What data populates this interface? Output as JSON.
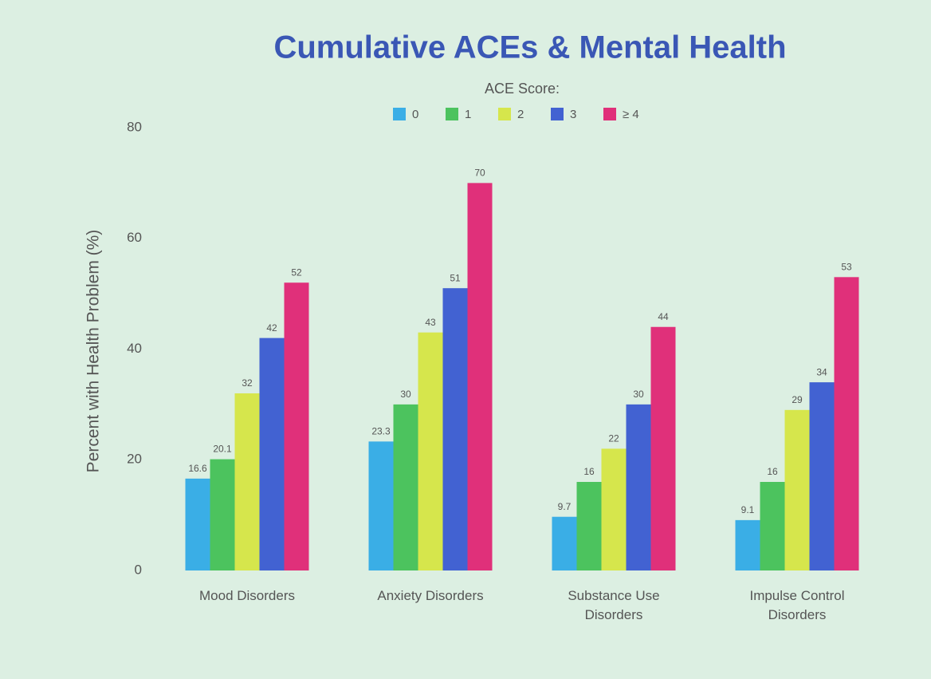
{
  "chart_data": {
    "type": "bar",
    "title": "Cumulative ACEs & Mental Health",
    "legend_title": "ACE Score:",
    "y_label": "Percent with Health Problem (%)",
    "categories": [
      "Mood Disorders",
      "Anxiety Disorders",
      "Substance Use Disorders",
      "Impulse Control Disorders"
    ],
    "series": [
      {
        "name": "0",
        "color": "#3aaee6",
        "values": [
          16.6,
          23.3,
          9.7,
          9.1
        ]
      },
      {
        "name": "1",
        "color": "#4cc35e",
        "values": [
          20.1,
          30,
          16,
          16
        ]
      },
      {
        "name": "2",
        "color": "#d6e64c",
        "values": [
          32,
          43,
          22,
          29
        ]
      },
      {
        "name": "3",
        "color": "#4262d2",
        "values": [
          42,
          51,
          30,
          34
        ]
      },
      {
        "name": "≥ 4",
        "color": "#e0307a",
        "values": [
          52,
          70,
          44,
          53
        ]
      }
    ],
    "ylim": [
      0,
      80
    ],
    "yticks": [
      0,
      20,
      40,
      60,
      80
    ],
    "grid": false,
    "legend": "top"
  }
}
